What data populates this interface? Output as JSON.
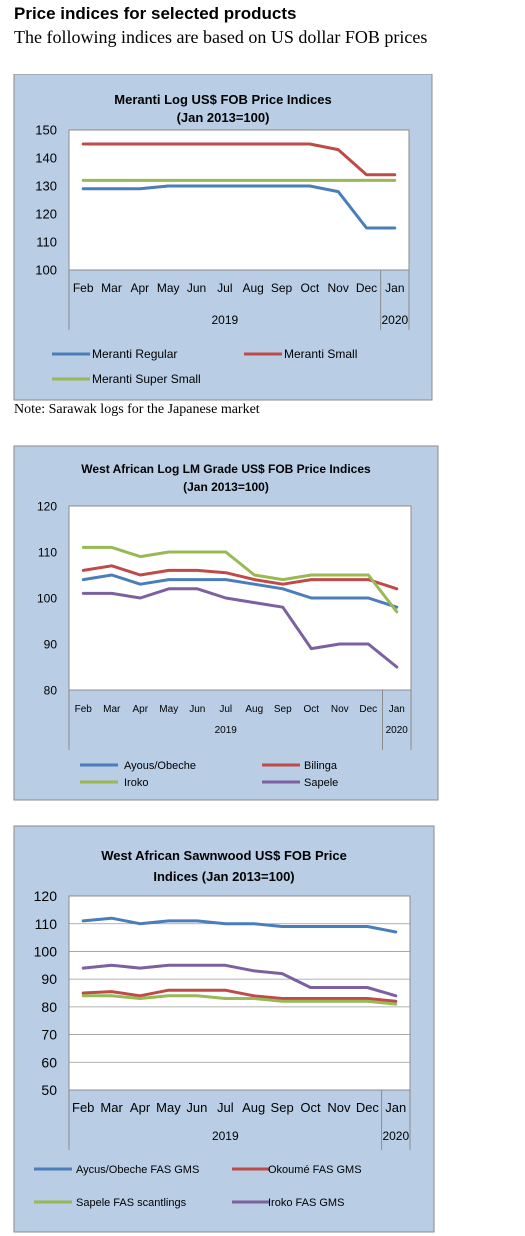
{
  "page": {
    "heading": "Price indices for selected products",
    "subheading": "The following indices are based on US dollar FOB prices",
    "note": "Note: Sarawak logs for the Japanese market"
  },
  "colors": {
    "blue": "#4a7ebb",
    "red": "#be4b48",
    "green": "#98b954",
    "purple": "#7d60a0",
    "panel": "#b9cde5"
  },
  "chart_data": [
    {
      "type": "line",
      "title": "Meranti Log US$ FOB Price Indices",
      "subtitle": "(Jan 2013=100)",
      "categories": [
        "Feb",
        "Mar",
        "Apr",
        "May",
        "Jun",
        "Jul",
        "Aug",
        "Sep",
        "Oct",
        "Nov",
        "Dec",
        "Jan"
      ],
      "year_labels": [
        "2019",
        "2020"
      ],
      "yticks": [
        100,
        110,
        120,
        130,
        140,
        150
      ],
      "ylim": [
        100,
        150
      ],
      "grid": false,
      "legend_position": "bottom",
      "series": [
        {
          "name": "Meranti Regular",
          "color": "#4a7ebb",
          "values": [
            129,
            129,
            129,
            130,
            130,
            130,
            130,
            130,
            130,
            128,
            115,
            115
          ]
        },
        {
          "name": "Meranti Small",
          "color": "#be4b48",
          "values": [
            145,
            145,
            145,
            145,
            145,
            145,
            145,
            145,
            145,
            143,
            134,
            134
          ]
        },
        {
          "name": "Meranti Super Small",
          "color": "#98b954",
          "values": [
            132,
            132,
            132,
            132,
            132,
            132,
            132,
            132,
            132,
            132,
            132,
            132
          ]
        }
      ]
    },
    {
      "type": "line",
      "title": "West African Log LM Grade US$ FOB Price Indices",
      "subtitle": "(Jan 2013=100)",
      "categories": [
        "Feb",
        "Mar",
        "Apr",
        "May",
        "Jun",
        "Jul",
        "Aug",
        "Sep",
        "Oct",
        "Nov",
        "Dec",
        "Jan"
      ],
      "year_labels": [
        "2019",
        "2020"
      ],
      "yticks": [
        80,
        90,
        100,
        110,
        120
      ],
      "ylim": [
        80,
        120
      ],
      "grid": false,
      "legend_position": "bottom",
      "series": [
        {
          "name": "Ayous/Obeche",
          "color": "#4a7ebb",
          "values": [
            104,
            105,
            103,
            104,
            104,
            104,
            103,
            102,
            100,
            100,
            100,
            98
          ]
        },
        {
          "name": "Bilinga",
          "color": "#be4b48",
          "values": [
            106,
            107,
            105,
            106,
            106,
            105.5,
            104,
            103,
            104,
            104,
            104,
            102
          ]
        },
        {
          "name": "Iroko",
          "color": "#98b954",
          "values": [
            111,
            111,
            109,
            110,
            110,
            110,
            105,
            104,
            105,
            105,
            105,
            97
          ]
        },
        {
          "name": "Sapele",
          "color": "#7d60a0",
          "values": [
            101,
            101,
            100,
            102,
            102,
            100,
            99,
            98,
            89,
            90,
            90,
            85
          ]
        }
      ]
    },
    {
      "type": "line",
      "title": "West African Sawnwood US$ FOB Price",
      "subtitle": "Indices (Jan 2013=100)",
      "categories": [
        "Feb",
        "Mar",
        "Apr",
        "May",
        "Jun",
        "Jul",
        "Aug",
        "Sep",
        "Oct",
        "Nov",
        "Dec",
        "Jan"
      ],
      "year_labels": [
        "2019",
        "2020"
      ],
      "yticks": [
        50,
        60,
        70,
        80,
        90,
        100,
        110,
        120
      ],
      "ylim": [
        50,
        120
      ],
      "grid": true,
      "legend_position": "bottom",
      "series": [
        {
          "name": "Aycus/Obeche FAS GMS",
          "color": "#4a7ebb",
          "values": [
            111,
            112,
            110,
            111,
            111,
            110,
            110,
            109,
            109,
            109,
            109,
            107
          ]
        },
        {
          "name": "Okoumé FAS GMS",
          "color": "#be4b48",
          "values": [
            85,
            85.5,
            84,
            86,
            86,
            86,
            84,
            83,
            83,
            83,
            83,
            82
          ]
        },
        {
          "name": "Sapele FAS scantlings",
          "color": "#98b954",
          "values": [
            84,
            84,
            83,
            84,
            84,
            83,
            83,
            82,
            82,
            82,
            82,
            81
          ]
        },
        {
          "name": "Iroko FAS GMS",
          "color": "#7d60a0",
          "values": [
            94,
            95,
            94,
            95,
            95,
            95,
            93,
            92,
            87,
            87,
            87,
            84
          ]
        }
      ]
    }
  ]
}
